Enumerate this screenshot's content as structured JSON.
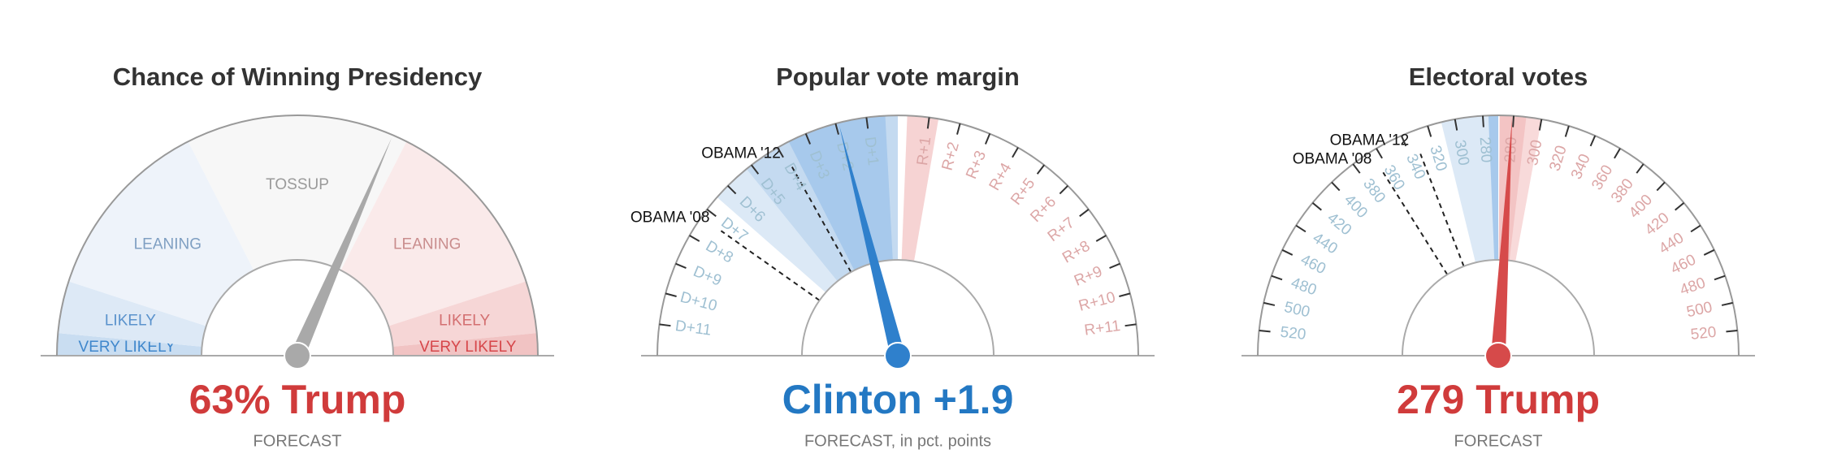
{
  "chart_data": [
    {
      "type": "gauge",
      "title": "Chance of Winning Presidency",
      "headline": "63% Trump",
      "headline_color": "#d03b3b",
      "note": "FORECAST",
      "xlim": [
        0,
        100
      ],
      "value": 63,
      "needle_color": "#a9a9a9",
      "zones": [
        {
          "label": "VERY LIKELY",
          "from": 0,
          "to": 3,
          "color": "#c9ddf1",
          "label_color": "#3f87cc"
        },
        {
          "label": "LIKELY",
          "from": 3,
          "to": 10,
          "color": "#dde9f6",
          "label_color": "#5a92cc"
        },
        {
          "label": "LEANING",
          "from": 10,
          "to": 35,
          "color": "#eef3fa",
          "label_color": "#7f9fc2"
        },
        {
          "label": "TOSSUP",
          "from": 35,
          "to": 65,
          "color": "#f7f7f7",
          "label_color": "#9a9a9a"
        },
        {
          "label": "LEANING",
          "from": 65,
          "to": 90,
          "color": "#faeaea",
          "label_color": "#c98d8d"
        },
        {
          "label": "LIKELY",
          "from": 90,
          "to": 97,
          "color": "#f6d6d6",
          "label_color": "#d36f70"
        },
        {
          "label": "VERY LIKELY",
          "from": 97,
          "to": 100,
          "color": "#f1c3c3",
          "label_color": "#d6464a"
        }
      ]
    },
    {
      "type": "gauge",
      "title": "Popular vote margin",
      "headline": "Clinton +1.9",
      "headline_color": "#2378c3",
      "note": "FORECAST, in pct. points",
      "xlim": [
        -12,
        12
      ],
      "value": -1.9,
      "needle_color": "#2f80cc",
      "tick_label_colors": {
        "left": "#9fc0d2",
        "right": "#dca6a6"
      },
      "xticks": [
        {
          "value": -11,
          "label": "D+11"
        },
        {
          "value": -10,
          "label": "D+10"
        },
        {
          "value": -9,
          "label": "D+9"
        },
        {
          "value": -8,
          "label": "D+8"
        },
        {
          "value": -7,
          "label": "D+7"
        },
        {
          "value": -6,
          "label": "D+6"
        },
        {
          "value": -5,
          "label": "D+5"
        },
        {
          "value": -4,
          "label": "D+4"
        },
        {
          "value": -3,
          "label": "D+3"
        },
        {
          "value": -2,
          "label": "D+2"
        },
        {
          "value": -1,
          "label": "D+1"
        },
        {
          "value": 1,
          "label": "R+1"
        },
        {
          "value": 2,
          "label": "R+2"
        },
        {
          "value": 3,
          "label": "R+3"
        },
        {
          "value": 4,
          "label": "R+4"
        },
        {
          "value": 5,
          "label": "R+5"
        },
        {
          "value": 6,
          "label": "R+6"
        },
        {
          "value": 7,
          "label": "R+7"
        },
        {
          "value": 8,
          "label": "R+8"
        },
        {
          "value": 9,
          "label": "R+9"
        },
        {
          "value": 10,
          "label": "R+10"
        },
        {
          "value": 11,
          "label": "R+11"
        }
      ],
      "zones": [
        {
          "from": -6.5,
          "to": 0,
          "color": "#dce9f6"
        },
        {
          "from": -5.2,
          "to": 0,
          "color": "#c4daf0"
        },
        {
          "from": -3.6,
          "to": -0.4,
          "color": "#a7c9ec"
        },
        {
          "from": 0.3,
          "to": 1.3,
          "color": "#f6d3d3"
        }
      ],
      "references": [
        {
          "label": "OBAMA '12",
          "value": -3.9
        },
        {
          "label": "OBAMA '08",
          "value": -7.3
        }
      ]
    },
    {
      "type": "gauge",
      "title": "Electoral votes",
      "headline": "279 Trump",
      "headline_color": "#d03b3b",
      "note": "FORECAST",
      "xlim": [
        0,
        538
      ],
      "value": 279,
      "needle_color": "#d64a4a",
      "tick_label_colors": {
        "left": "#9fc0d2",
        "right": "#dca6a6"
      },
      "xticks": [
        {
          "value": 18,
          "label": "520"
        },
        {
          "value": 38,
          "label": "500"
        },
        {
          "value": 58,
          "label": "480"
        },
        {
          "value": 78,
          "label": "460"
        },
        {
          "value": 98,
          "label": "440"
        },
        {
          "value": 118,
          "label": "420"
        },
        {
          "value": 138,
          "label": "400"
        },
        {
          "value": 158,
          "label": "380"
        },
        {
          "value": 178,
          "label": "360"
        },
        {
          "value": 198,
          "label": "340"
        },
        {
          "value": 218,
          "label": "320"
        },
        {
          "value": 238,
          "label": "300"
        },
        {
          "value": 258,
          "label": "280"
        },
        280,
        300,
        320,
        340,
        360,
        380,
        400,
        420,
        440,
        460,
        480,
        500,
        520
      ],
      "zones": [
        {
          "from": 228,
          "to": 269,
          "color": "#dce9f6"
        },
        {
          "from": 262,
          "to": 269,
          "color": "#a7c9ec"
        },
        {
          "from": 270,
          "to": 300,
          "color": "#f8dada"
        },
        {
          "from": 270,
          "to": 289,
          "color": "#f3c4c4"
        }
      ],
      "references": [
        {
          "label": "OBAMA '12",
          "value": 206
        },
        {
          "label": "OBAMA '08",
          "value": 173
        }
      ]
    }
  ]
}
